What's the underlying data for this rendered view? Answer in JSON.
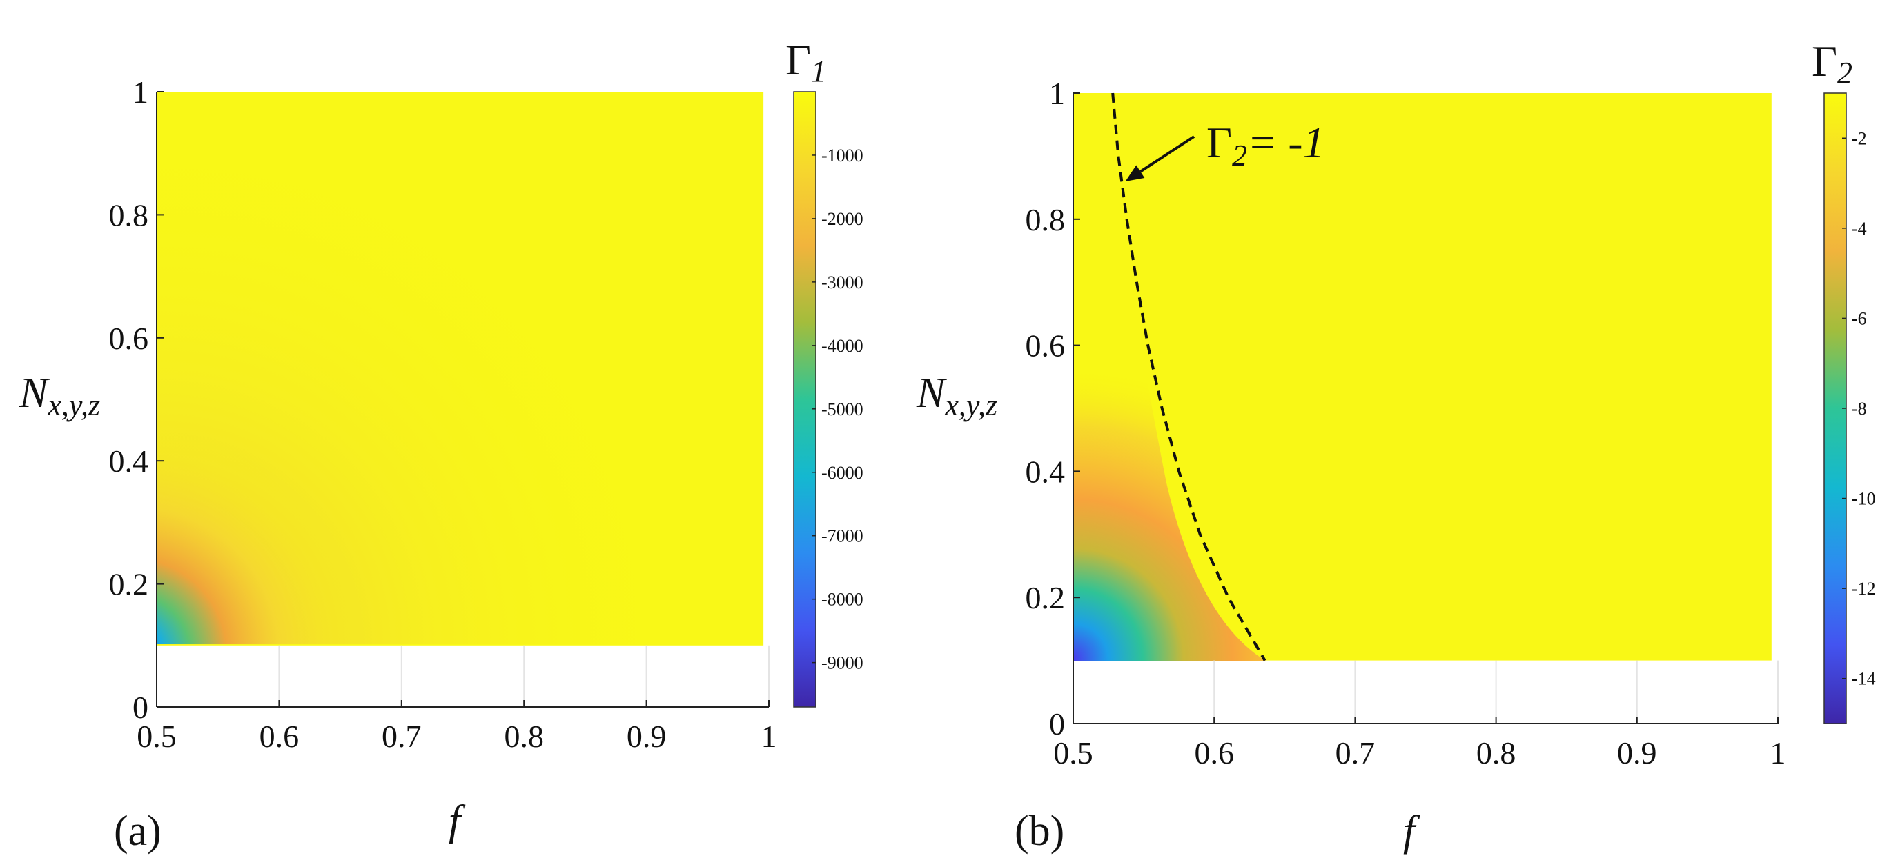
{
  "chart_data": [
    {
      "type": "heatmap",
      "panel_label": "(a)",
      "xlabel": "f",
      "ylabel": {
        "base": "N",
        "sub": "x,y,z"
      },
      "colorbar_label": {
        "base": "Γ",
        "sub": "1"
      },
      "xlim": [
        0.5,
        1
      ],
      "ylim": [
        0,
        1
      ],
      "xticks": [
        0.5,
        0.6,
        0.7,
        0.8,
        0.9,
        1
      ],
      "xtick_labels": [
        "0.5",
        "0.6",
        "0.7",
        "0.8",
        "0.9",
        "1"
      ],
      "yticks": [
        0,
        0.2,
        0.4,
        0.6,
        0.8,
        1
      ],
      "ytick_labels": [
        "0",
        "0.2",
        "0.4",
        "0.6",
        "0.8",
        "1"
      ],
      "data_extent": {
        "x": [
          0.5,
          0.995
        ],
        "y": [
          0.1,
          1
        ]
      },
      "clim": [
        -9700,
        0
      ],
      "colorbar_ticks": [
        -1000,
        -2000,
        -3000,
        -4000,
        -5000,
        -6000,
        -7000,
        -8000,
        -9000
      ],
      "colorbar_tick_labels": [
        "-1000",
        "-2000",
        "-3000",
        "-4000",
        "-5000",
        "-6000",
        "-7000",
        "-8000",
        "-9000"
      ]
    },
    {
      "type": "heatmap",
      "panel_label": "(b)",
      "xlabel": "f",
      "ylabel": {
        "base": "N",
        "sub": "x,y,z"
      },
      "colorbar_label": {
        "base": "Γ",
        "sub": "2"
      },
      "xlim": [
        0.5,
        1
      ],
      "ylim": [
        0,
        1
      ],
      "xticks": [
        0.5,
        0.6,
        0.7,
        0.8,
        0.9,
        1
      ],
      "xtick_labels": [
        "0.5",
        "0.6",
        "0.7",
        "0.8",
        "0.9",
        "1"
      ],
      "yticks": [
        0,
        0.2,
        0.4,
        0.6,
        0.8,
        1
      ],
      "ytick_labels": [
        "0",
        "0.2",
        "0.4",
        "0.6",
        "0.8",
        "1"
      ],
      "data_extent": {
        "x": [
          0.5,
          0.995
        ],
        "y": [
          0.1,
          1
        ]
      },
      "clim": [
        -15,
        -1
      ],
      "colorbar_ticks": [
        -2,
        -4,
        -6,
        -8,
        -10,
        -12,
        -14
      ],
      "colorbar_tick_labels": [
        "-2",
        "-4",
        "-6",
        "-8",
        "-10",
        "-12",
        "-14"
      ],
      "contour": {
        "level": -1,
        "style": "dashed",
        "points": [
          [
            0.528,
            1.0
          ],
          [
            0.532,
            0.9
          ],
          [
            0.538,
            0.8
          ],
          [
            0.545,
            0.7
          ],
          [
            0.553,
            0.6
          ],
          [
            0.563,
            0.5
          ],
          [
            0.575,
            0.4
          ],
          [
            0.59,
            0.3
          ],
          [
            0.61,
            0.2
          ],
          [
            0.636,
            0.1
          ]
        ]
      },
      "annotation": {
        "base": "Γ",
        "sub": "2",
        "suffix": "= -1",
        "arrow_to": [
          0.537,
          0.86
        ]
      }
    }
  ]
}
